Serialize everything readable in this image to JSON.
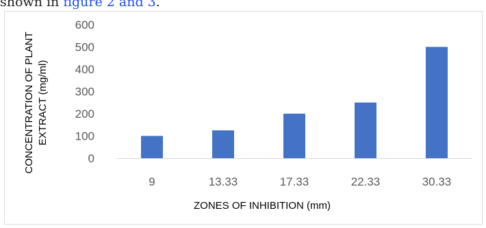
{
  "header": {
    "prefix": "shown in ",
    "link": "figure 2 and 3",
    "suffix": "."
  },
  "chart_data": {
    "type": "bar",
    "categories": [
      "9",
      "13.33",
      "17.33",
      "22.33",
      "30.33"
    ],
    "values": [
      100,
      125,
      200,
      250,
      500
    ],
    "xlabel": "ZONES OF INHIBITION (mm)",
    "ylabel_lines": [
      "CONCENTRATION OF PLANT",
      "EXTRACT (mg/ml)"
    ],
    "ylim": [
      0,
      600
    ],
    "yticks": [
      0,
      100,
      200,
      300,
      400,
      500,
      600
    ],
    "grid": false,
    "legend": "none",
    "bar_color": "#4472c4",
    "axis_color": "#d9d9d9"
  }
}
